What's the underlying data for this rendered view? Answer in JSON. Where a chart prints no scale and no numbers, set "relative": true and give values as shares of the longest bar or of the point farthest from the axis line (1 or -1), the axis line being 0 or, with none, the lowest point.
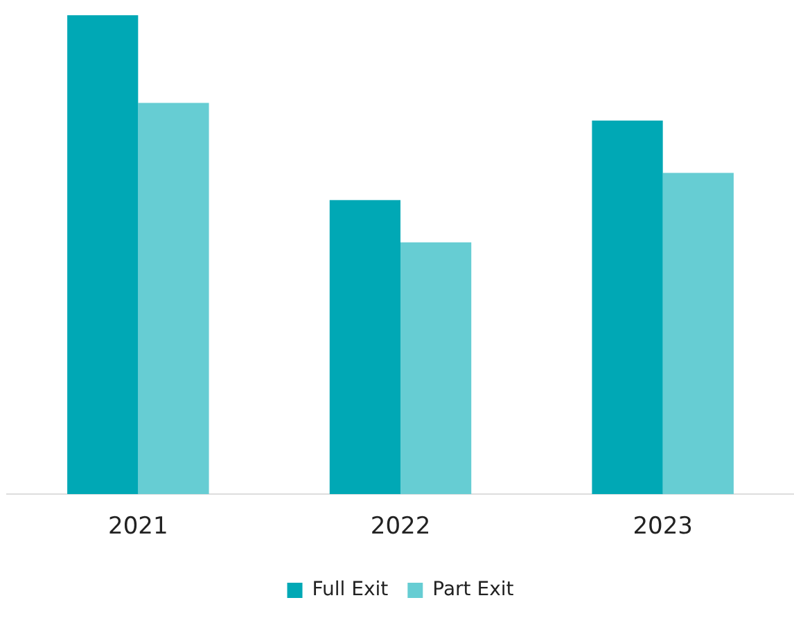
{
  "chart_data": {
    "type": "bar",
    "relative": true,
    "categories": [
      "2021",
      "2022",
      "2023"
    ],
    "series": [
      {
        "name": "Full Exit",
        "color": "#00a8b5",
        "values": [
          1,
          0.614,
          0.78
        ]
      },
      {
        "name": "Part Exit",
        "color": "#66cdd3",
        "values": [
          0.817,
          0.526,
          0.671
        ]
      }
    ],
    "legend": "bottom",
    "grid": false
  }
}
